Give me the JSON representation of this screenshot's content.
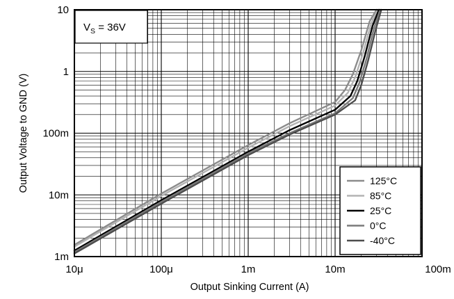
{
  "chart_data": {
    "type": "line",
    "xscale": "log",
    "yscale": "log",
    "xlabel": "Output Sinking Current (A)",
    "ylabel": "Output Voltage to GND (V)",
    "xlim": [
      1e-05,
      0.1
    ],
    "ylim": [
      0.001,
      10
    ],
    "grid": true,
    "legend_position": "bottom-right",
    "annotation": {
      "main": "V",
      "sub": "S",
      "rest": " = 36V"
    },
    "x_ticks": [
      {
        "value": 1e-05,
        "label": "10μ"
      },
      {
        "value": 0.0001,
        "label": "100μ"
      },
      {
        "value": 0.001,
        "label": "1m"
      },
      {
        "value": 0.01,
        "label": "10m"
      },
      {
        "value": 0.1,
        "label": "100m"
      }
    ],
    "y_ticks": [
      {
        "value": 0.001,
        "label": "1m"
      },
      {
        "value": 0.01,
        "label": "10m"
      },
      {
        "value": 0.1,
        "label": "100m"
      },
      {
        "value": 1,
        "label": "1"
      },
      {
        "value": 10,
        "label": "10"
      }
    ],
    "series": [
      {
        "name": "125°C",
        "color": "#8c8c8c",
        "x": [
          1e-05,
          0.0001,
          0.001,
          0.003,
          0.01,
          0.013,
          0.016,
          0.02,
          0.025,
          0.03
        ],
        "y": [
          0.00155,
          0.0105,
          0.064,
          0.145,
          0.32,
          0.5,
          0.9,
          2.2,
          6.5,
          10
        ]
      },
      {
        "name": "85°C",
        "color": "#b3b3b3",
        "x": [
          1e-05,
          0.0001,
          0.001,
          0.003,
          0.01,
          0.014,
          0.017,
          0.021,
          0.026,
          0.031
        ],
        "y": [
          0.00145,
          0.0096,
          0.058,
          0.13,
          0.28,
          0.45,
          0.8,
          2.0,
          6.0,
          10
        ]
      },
      {
        "name": "25°C",
        "color": "#000000",
        "x": [
          1e-05,
          0.0001,
          0.001,
          0.003,
          0.01,
          0.015,
          0.018,
          0.022,
          0.027,
          0.032
        ],
        "y": [
          0.00125,
          0.0082,
          0.05,
          0.112,
          0.24,
          0.4,
          0.7,
          1.8,
          5.5,
          10
        ]
      },
      {
        "name": "0°C",
        "color": "#7a7a7a",
        "x": [
          1e-05,
          0.0001,
          0.001,
          0.003,
          0.01,
          0.016,
          0.019,
          0.023,
          0.028,
          0.033
        ],
        "y": [
          0.00118,
          0.0077,
          0.047,
          0.1,
          0.21,
          0.37,
          0.65,
          1.6,
          5.0,
          10
        ]
      },
      {
        "name": "-40°C",
        "color": "#4d4d4d",
        "x": [
          1e-05,
          0.0001,
          0.001,
          0.003,
          0.01,
          0.017,
          0.02,
          0.024,
          0.029,
          0.034
        ],
        "y": [
          0.00112,
          0.0072,
          0.044,
          0.095,
          0.2,
          0.34,
          0.6,
          1.5,
          4.5,
          10
        ]
      }
    ]
  }
}
